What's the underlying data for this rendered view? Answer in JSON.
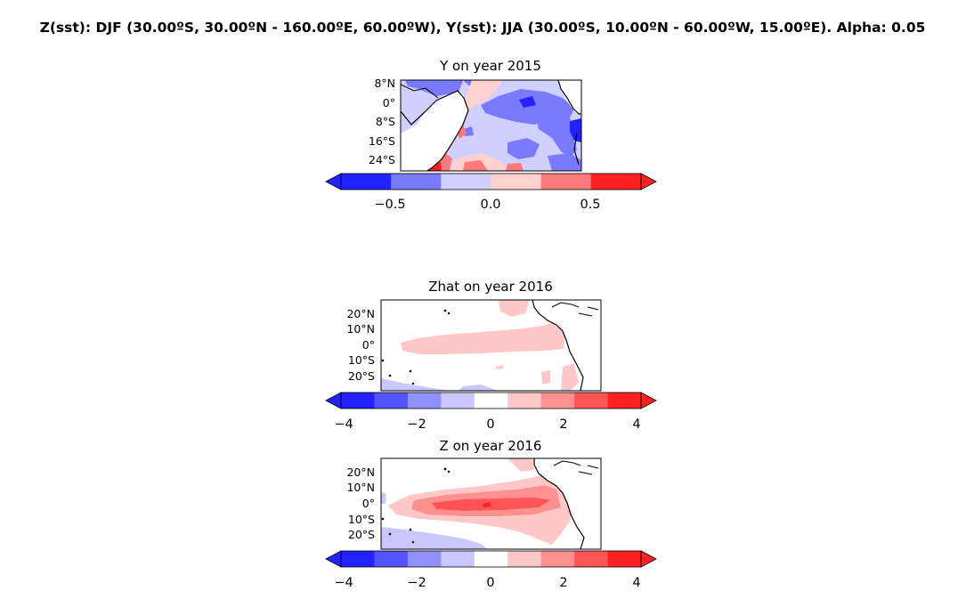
{
  "figure": {
    "suptitle": "Z(sst): DJF (30.00ºS, 30.00ºN - 160.00ºE, 60.00ºW), Y(sst): JJA (30.00ºS, 10.00ºN - 60.00ºW, 15.00ºE). Alpha: 0.05"
  },
  "panels": [
    {
      "id": "y",
      "title": "Y on year 2015",
      "lat_labels": [
        "8°N",
        "0°",
        "8°S",
        "16°S",
        "24°S"
      ],
      "colorbar_ticks": [
        "−0.5",
        "0.0",
        "0.5"
      ],
      "colorbar_levels": [
        -0.75,
        -0.5,
        -0.25,
        0.0,
        0.25,
        0.5,
        0.75
      ],
      "colorbar_colors": [
        "#2222ff",
        "#7a7aff",
        "#d0d0ff",
        "#ffd0d0",
        "#ff7a7a",
        "#ff2222"
      ]
    },
    {
      "id": "zhat",
      "title": "Zhat on year 2016",
      "lat_labels": [
        "20°N",
        "10°N",
        "0°",
        "10°S",
        "20°S"
      ],
      "colorbar_ticks": [
        "−4",
        "−2",
        "0",
        "2",
        "4"
      ],
      "colorbar_levels": [
        -4.0,
        -3.111,
        -2.222,
        -1.333,
        -0.444,
        0.444,
        1.333,
        2.222,
        3.111,
        4.0
      ],
      "colorbar_colors": [
        "#2222ff",
        "#5454ff",
        "#9090ff",
        "#c8c8ff",
        "#ffffff",
        "#ffc8c8",
        "#ff9090",
        "#ff5454",
        "#ff2222"
      ]
    },
    {
      "id": "z",
      "title": "Z on year 2016",
      "lat_labels": [
        "20°N",
        "10°N",
        "0°",
        "10°S",
        "20°S"
      ],
      "colorbar_ticks": [
        "−4",
        "−2",
        "0",
        "2",
        "4"
      ],
      "colorbar_levels": [
        -4.0,
        -3.111,
        -2.222,
        -1.333,
        -0.444,
        0.444,
        1.333,
        2.222,
        3.111,
        4.0
      ],
      "colorbar_colors": [
        "#2222ff",
        "#5454ff",
        "#9090ff",
        "#c8c8ff",
        "#ffffff",
        "#ffc8c8",
        "#ff9090",
        "#ff5454",
        "#ff2222"
      ]
    }
  ]
}
